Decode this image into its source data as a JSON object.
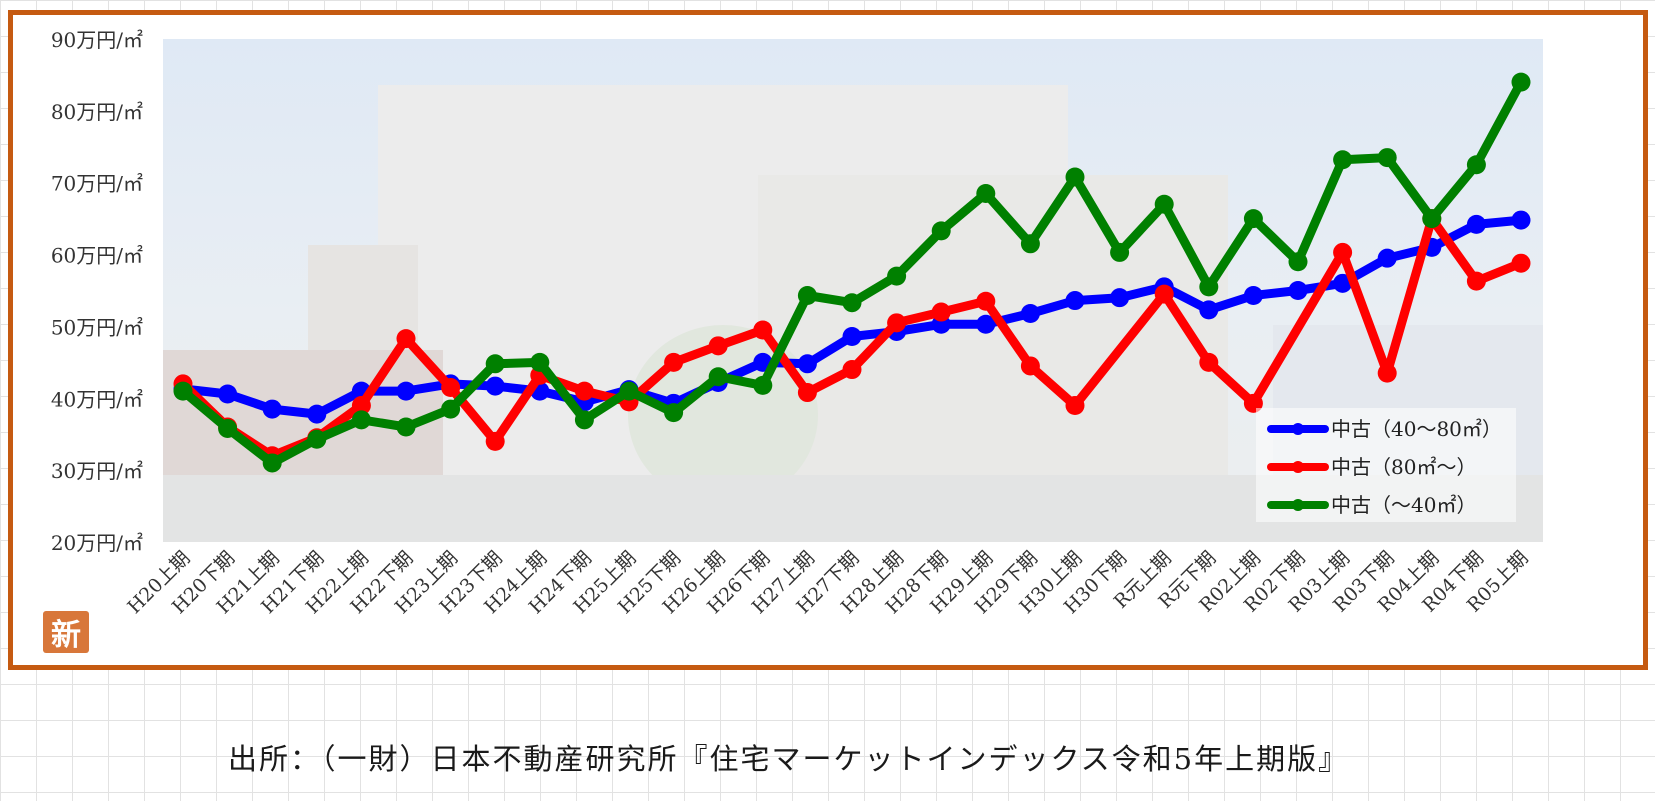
{
  "source": "出所：（一財）日本不動産研究所『住宅マーケットインデックス令和5年上期版』",
  "badge_char": "新",
  "chart_data": {
    "type": "line",
    "title": "",
    "xlabel": "",
    "ylabel": "",
    "ylim": [
      20,
      90
    ],
    "yticks": [
      {
        "value": 20,
        "label": "20万円/㎡"
      },
      {
        "value": 30,
        "label": "30万円/㎡"
      },
      {
        "value": 40,
        "label": "40万円/㎡"
      },
      {
        "value": 50,
        "label": "50万円/㎡"
      },
      {
        "value": 60,
        "label": "60万円/㎡"
      },
      {
        "value": 70,
        "label": "70万円/㎡"
      },
      {
        "value": 80,
        "label": "80万円/㎡"
      },
      {
        "value": 90,
        "label": "90万円/㎡"
      }
    ],
    "categories": [
      "H20上期",
      "H20下期",
      "H21上期",
      "H21下期",
      "H22上期",
      "H22下期",
      "H23上期",
      "H23下期",
      "H24上期",
      "H24下期",
      "H25上期",
      "H25下期",
      "H26上期",
      "H26下期",
      "H27上期",
      "H27下期",
      "H28上期",
      "H28下期",
      "H29上期",
      "H29下期",
      "H30上期",
      "H30下期",
      "R元上期",
      "R元下期",
      "R02上期",
      "R02下期",
      "R03上期",
      "R03下期",
      "R04上期",
      "R04下期",
      "R05上期"
    ],
    "series": [
      {
        "name": "中古（40～80㎡）",
        "color": "#0000ff",
        "values": [
          41.3,
          40.6,
          38.5,
          37.8,
          41.0,
          41.0,
          42.0,
          41.7,
          41.0,
          39.5,
          41.2,
          39.3,
          42.2,
          45.0,
          44.8,
          48.6,
          49.3,
          50.3,
          50.3,
          51.8,
          53.6,
          54.0,
          55.5,
          52.3,
          54.3,
          55.0,
          56.0,
          59.5,
          61.0,
          64.2,
          64.8
        ]
      },
      {
        "name": "中古（80㎡～）",
        "color": "#ff0000",
        "values": [
          42.0,
          36.0,
          32.0,
          34.5,
          39.0,
          48.3,
          41.5,
          34.0,
          43.2,
          41.0,
          39.5,
          45.0,
          47.3,
          49.5,
          40.8,
          44.0,
          50.5,
          52.0,
          53.5,
          44.5,
          39.0,
          null,
          54.5,
          45.0,
          39.3,
          null,
          60.3,
          43.5,
          65.0,
          56.3,
          58.8
        ]
      },
      {
        "name": "中古（～40㎡）",
        "color": "#008000",
        "values": [
          41.0,
          35.8,
          31.0,
          34.3,
          37.0,
          36.0,
          38.5,
          44.8,
          45.0,
          37.0,
          41.0,
          38.0,
          43.0,
          41.8,
          54.3,
          53.3,
          57.0,
          63.3,
          68.5,
          61.5,
          70.8,
          60.3,
          67.0,
          55.5,
          65.0,
          59.0,
          73.2,
          73.5,
          65.0,
          72.5,
          84.0
        ]
      }
    ],
    "legend_position": "bottom-right",
    "grid": false
  }
}
